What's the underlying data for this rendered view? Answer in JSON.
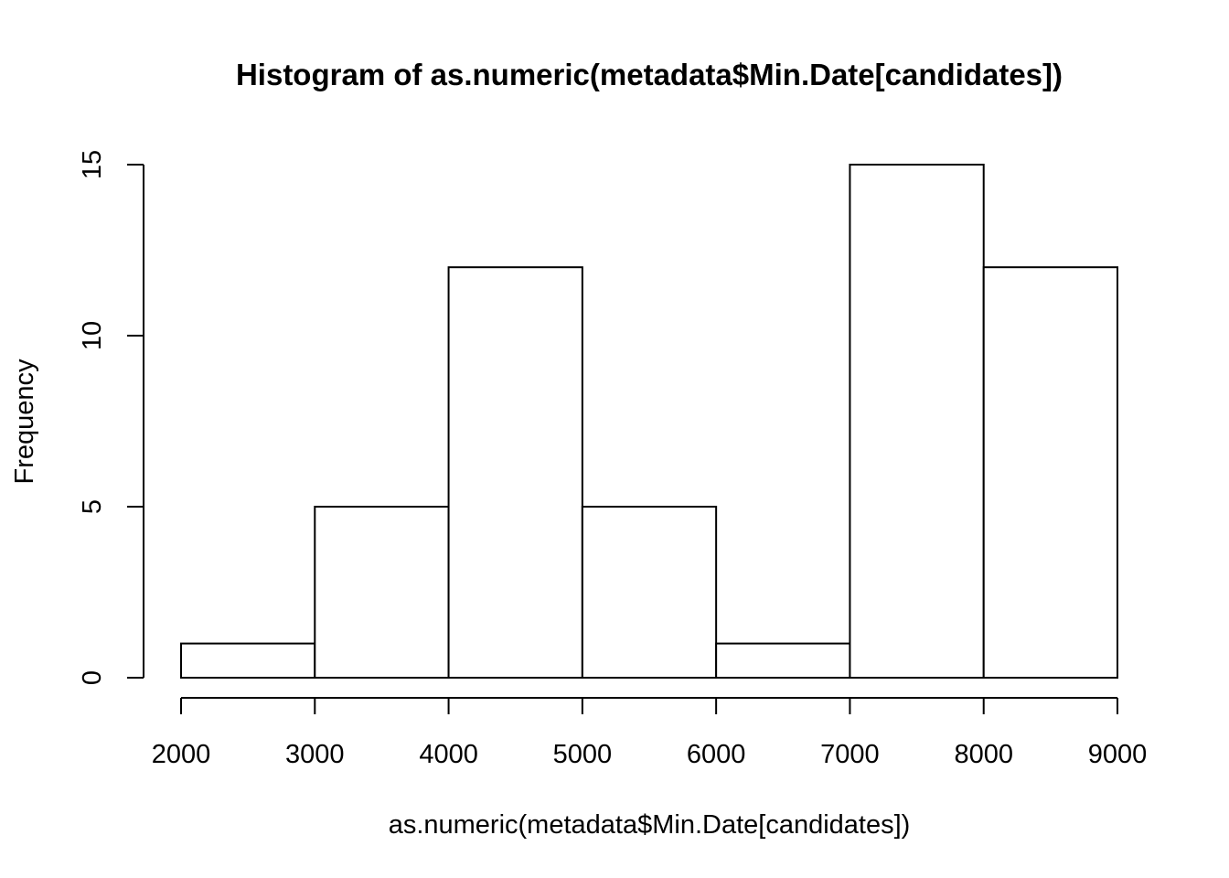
{
  "chart_data": {
    "type": "bar",
    "title": "Histogram of as.numeric(metadata$Min.Date[candidates])",
    "xlabel": "as.numeric(metadata$Min.Date[candidates])",
    "ylabel": "Frequency",
    "bins": [
      {
        "from": 2000,
        "to": 3000,
        "count": 1
      },
      {
        "from": 3000,
        "to": 4000,
        "count": 5
      },
      {
        "from": 4000,
        "to": 5000,
        "count": 12
      },
      {
        "from": 5000,
        "to": 6000,
        "count": 5
      },
      {
        "from": 6000,
        "to": 7000,
        "count": 1
      },
      {
        "from": 7000,
        "to": 8000,
        "count": 15
      },
      {
        "from": 8000,
        "to": 9000,
        "count": 12
      }
    ],
    "xlim": [
      2000,
      9000
    ],
    "ylim": [
      0,
      15
    ],
    "x_ticks": [
      2000,
      3000,
      4000,
      5000,
      6000,
      7000,
      8000,
      9000
    ],
    "x_tick_labels": [
      "2000",
      "3000",
      "4000",
      "5000",
      "6000",
      "7000",
      "8000",
      "9000"
    ],
    "y_ticks": [
      0,
      5,
      10,
      15
    ],
    "y_tick_labels": [
      "0",
      "5",
      "10",
      "15"
    ],
    "grid": false,
    "legend": "none",
    "bar_fill": "#ffffff",
    "bar_stroke": "#000000"
  }
}
